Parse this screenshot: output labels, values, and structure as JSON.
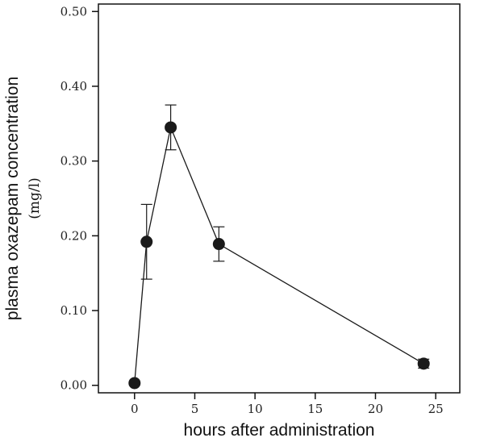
{
  "chart_data": {
    "type": "line",
    "title": "",
    "xlabel": "hours after administration",
    "ylabel": "plasma oxazepam concentration",
    "ylabel_units": "(mg/l)",
    "xlim": [
      -3,
      27
    ],
    "ylim": [
      -0.01,
      0.51
    ],
    "x_ticks": [
      0,
      5,
      10,
      15,
      20,
      25
    ],
    "x_tick_labels": [
      "0",
      "5",
      "10",
      "15",
      "20",
      "25"
    ],
    "y_ticks": [
      0,
      0.1,
      0.2,
      0.3,
      0.4,
      0.5
    ],
    "y_tick_labels": [
      "0.00",
      "0.10",
      "0.20",
      "0.30",
      "0.40",
      "0.50"
    ],
    "grid": false,
    "series": [
      {
        "x": [
          0,
          1,
          3,
          7,
          24
        ],
        "y": [
          0.003,
          0.192,
          0.345,
          0.189,
          0.029
        ],
        "error": [
          0,
          0.05,
          0.03,
          0.023,
          0.006
        ],
        "color": "#1a1a1a",
        "marker": "circle"
      }
    ]
  }
}
